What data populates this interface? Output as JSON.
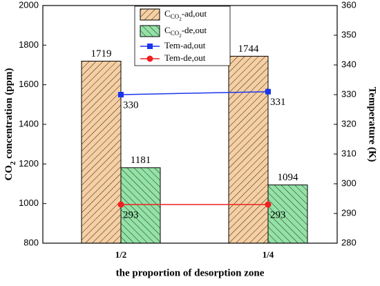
{
  "chart_data": {
    "type": "bar",
    "x_label": "the proportion of desorption zone",
    "y_label": "CO2 concentration (ppm)",
    "y2_label": "Temperature (K)",
    "categories": [
      "1/2",
      "1/4"
    ],
    "series": [
      {
        "name": "CCO2-ad,out",
        "type": "bar",
        "color": "#f6cfa2",
        "values": [
          1719,
          1744
        ]
      },
      {
        "name": "CCO2-de,out",
        "type": "bar",
        "color": "#93e2a6",
        "values": [
          1181,
          1094
        ]
      },
      {
        "name": "Tem-ad,out",
        "type": "line",
        "axis": "y2",
        "color": "#1a35f0",
        "marker": "square",
        "values": [
          330,
          331
        ]
      },
      {
        "name": "Tem-de,out",
        "type": "line",
        "axis": "y2",
        "color": "#f02020",
        "marker": "circle",
        "values": [
          293,
          293
        ]
      }
    ],
    "ylim": [
      800,
      2000
    ],
    "yticks": [
      800,
      1000,
      1200,
      1400,
      1600,
      1800,
      2000
    ],
    "y2lim": [
      280,
      360
    ],
    "y2ticks": [
      280,
      290,
      300,
      310,
      320,
      330,
      340,
      350,
      360
    ]
  }
}
